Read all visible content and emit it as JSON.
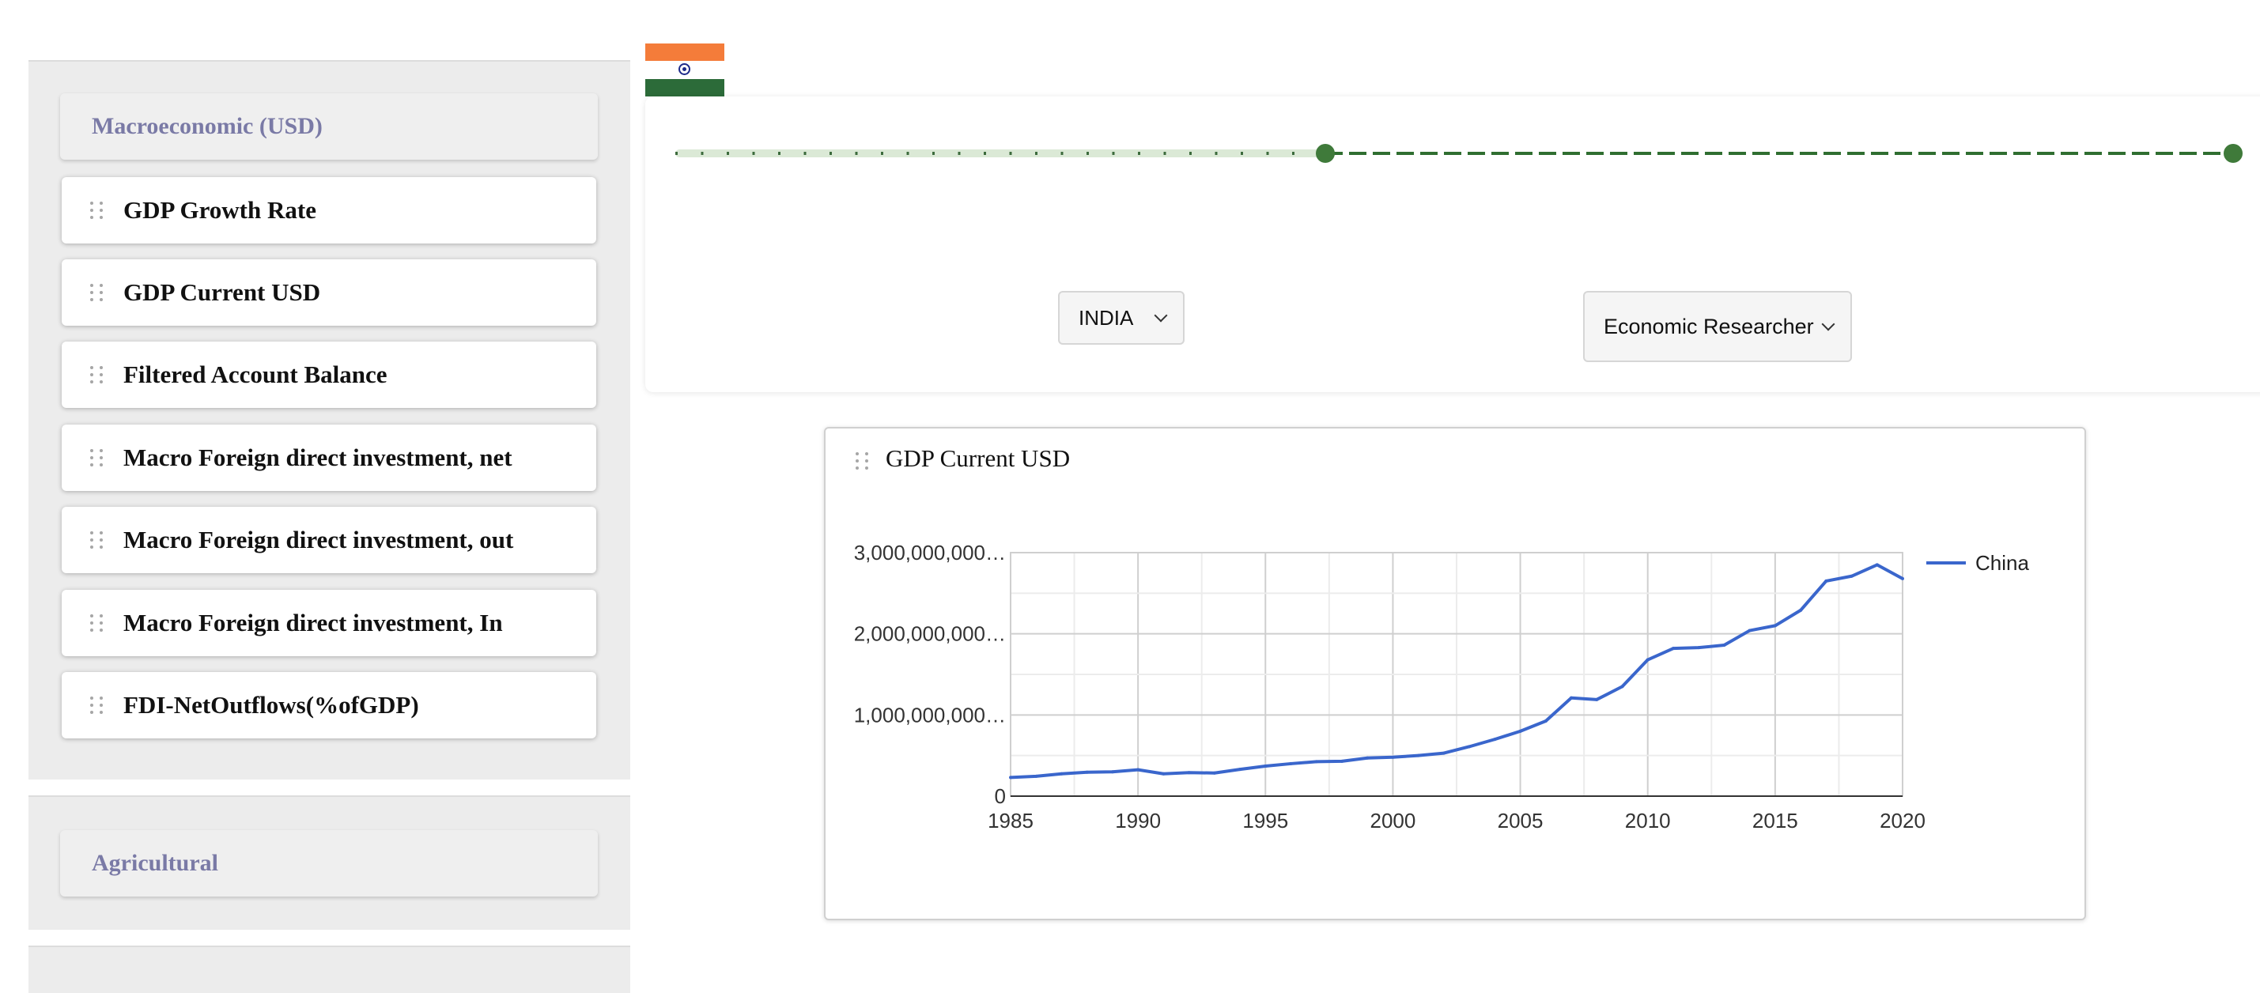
{
  "sidebar": {
    "sections": [
      {
        "title": "Macroeconomic (USD)",
        "items": [
          "GDP Growth Rate",
          "GDP Current USD",
          "Filtered Account Balance",
          "Macro Foreign direct investment, net",
          "Macro Foreign direct investment, out",
          "Macro Foreign direct investment, In",
          "FDI-NetOutflows(%ofGDP)"
        ]
      },
      {
        "title": "Agricultural"
      }
    ]
  },
  "flag": {
    "country": "India",
    "icon": "india-flag-icon"
  },
  "controls": {
    "year_slider": {
      "selected_fraction_start": 0.417,
      "selected_fraction_end": 1.0
    },
    "country_select": {
      "value": "INDIA"
    },
    "role_select": {
      "value": "Economic Researcher"
    }
  },
  "chart_card": {
    "title": "GDP Current USD"
  },
  "colors": {
    "series": "#3a66cc",
    "slider": "#3f7a3a",
    "section_header_text": "#7a7aa6"
  },
  "chart_data": {
    "type": "line",
    "title": "GDP Current USD",
    "xlabel": "",
    "ylabel": "",
    "x": [
      1985,
      1986,
      1987,
      1988,
      1989,
      1990,
      1991,
      1992,
      1993,
      1994,
      1995,
      1996,
      1997,
      1998,
      1999,
      2000,
      2001,
      2002,
      2003,
      2004,
      2005,
      2006,
      2007,
      2008,
      2009,
      2010,
      2011,
      2012,
      2013,
      2014,
      2015,
      2016,
      2017,
      2018,
      2019,
      2020
    ],
    "series": [
      {
        "name": "China",
        "values": [
          230000000,
          245000000,
          275000000,
          295000000,
          300000000,
          325000000,
          275000000,
          290000000,
          285000000,
          330000000,
          370000000,
          400000000,
          425000000,
          430000000,
          470000000,
          480000000,
          500000000,
          530000000,
          610000000,
          700000000,
          800000000,
          925000000,
          1210000000,
          1190000000,
          1350000000,
          1680000000,
          1820000000,
          1830000000,
          1860000000,
          2040000000,
          2100000000,
          2290000000,
          2650000000,
          2710000000,
          2850000000,
          2680000000
        ]
      }
    ],
    "xlim": [
      1985,
      2020
    ],
    "ylim": [
      0,
      3000000000
    ],
    "x_ticks": [
      "1985",
      "1990",
      "1995",
      "2000",
      "2005",
      "2010",
      "2015",
      "2020"
    ],
    "y_ticks": [
      "0",
      "1,000,000,000…",
      "2,000,000,000…",
      "3,000,000,000…"
    ],
    "grid": true,
    "legend": "right"
  }
}
